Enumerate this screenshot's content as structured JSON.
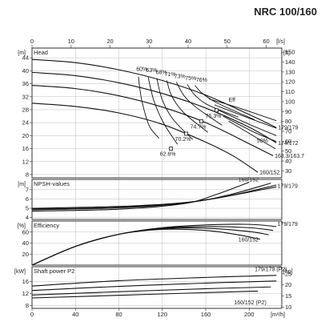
{
  "title": "NRC 100/160",
  "chart_data": {
    "type": "line",
    "x_axis_bottom": {
      "unit": "[m³/h]",
      "ticks": [
        0,
        40,
        80,
        120,
        160,
        200
      ],
      "range": [
        0,
        230
      ]
    },
    "x_axis_top": {
      "unit": "[l/s]",
      "ticks": [
        0,
        10,
        20,
        30,
        40,
        50,
        60
      ],
      "range": [
        0,
        64
      ]
    },
    "head": {
      "title": "Head",
      "unit_left": "[m]",
      "unit_right": "[ft]",
      "yticks": [
        8,
        12,
        16,
        20,
        24,
        28,
        32,
        36,
        40,
        44
      ],
      "yticks_right": [
        30,
        40,
        50,
        60,
        70,
        80,
        90,
        100,
        110,
        120,
        130,
        140,
        150
      ],
      "ylim": [
        7,
        47
      ],
      "series": [
        {
          "name": "179/179",
          "points": [
            [
              0,
              43.5
            ],
            [
              40,
              42.5
            ],
            [
              80,
              40.3
            ],
            [
              120,
              37
            ],
            [
              160,
              32.5
            ],
            [
              200,
              26.5
            ],
            [
              225,
              22.5
            ]
          ]
        },
        {
          "name": "174/172",
          "points": [
            [
              0,
              39.5
            ],
            [
              40,
              38.5
            ],
            [
              80,
              36.3
            ],
            [
              120,
              33
            ],
            [
              160,
              28.5
            ],
            [
              200,
              22.6
            ],
            [
              225,
              17.8
            ]
          ]
        },
        {
          "name": "168.3/163.7",
          "points": [
            [
              0,
              35.5
            ],
            [
              40,
              34.5
            ],
            [
              80,
              32.3
            ],
            [
              120,
              28.8
            ],
            [
              160,
              24
            ],
            [
              200,
              17.5
            ],
            [
              222,
              13.8
            ]
          ]
        },
        {
          "name": "160/152",
          "points": [
            [
              0,
              30
            ],
            [
              40,
              29
            ],
            [
              80,
              27
            ],
            [
              120,
              23.5
            ],
            [
              160,
              18
            ],
            [
              185,
              13.8
            ],
            [
              208,
              8.7
            ]
          ]
        }
      ],
      "efficiency_isolines": [
        {
          "label": "60%",
          "points": [
            [
              98,
              38.2
            ],
            [
              101,
              31
            ],
            [
              108,
              23
            ],
            [
              117,
              19.2
            ]
          ]
        },
        {
          "label": "63%",
          "points": [
            [
              107,
              38
            ],
            [
              112,
              31
            ],
            [
              121,
              24
            ],
            [
              134,
              17.3
            ]
          ]
        },
        {
          "label": "68%",
          "points": [
            [
              115,
              37.5
            ],
            [
              120,
              31
            ],
            [
              130,
              25
            ],
            [
              148,
              18.8
            ]
          ]
        },
        {
          "label": "71%",
          "points": [
            [
              124,
              37
            ],
            [
              129,
              32
            ],
            [
              140,
              27
            ],
            [
              162,
              21
            ]
          ]
        },
        {
          "label": "73%",
          "points": [
            [
              133,
              36.5
            ],
            [
              140,
              32.3
            ],
            [
              152,
              28.5
            ],
            [
              175,
              23.2
            ]
          ]
        },
        {
          "label": "75%",
          "points": [
            [
              143,
              35.8
            ],
            [
              150,
              32.5
            ],
            [
              163,
              29.3
            ],
            [
              190,
              25.7
            ]
          ]
        },
        {
          "label": "76%",
          "points": [
            [
              150,
              35.5
            ],
            [
              157,
              33
            ],
            [
              171,
              30
            ],
            [
              205,
              24.9
            ]
          ]
        },
        {
          "label": "76%",
          "points": [
            [
              163,
              31.3
            ],
            [
              190,
              28.6
            ],
            [
              225,
              24.6
            ]
          ]
        },
        {
          "label": "75%",
          "points": [
            [
              168,
              29.5
            ],
            [
              195,
              26
            ],
            [
              225,
              22.3
            ]
          ]
        },
        {
          "label": "73%",
          "points": [
            [
              172,
              27.8
            ],
            [
              200,
              23.5
            ],
            [
              225,
              20
            ]
          ]
        },
        {
          "label": "71%",
          "points": [
            [
              176,
              26
            ],
            [
              205,
              21
            ],
            [
              225,
              18.2
            ]
          ]
        },
        {
          "label": "68%",
          "points": [
            [
              181,
              24.5
            ],
            [
              210,
              18.7
            ],
            [
              224,
              16
            ]
          ]
        }
      ],
      "markers": [
        {
          "label": "Eff",
          "x": 178,
          "y": 30.5
        },
        {
          "label": "76.3%",
          "x": 170,
          "y": 27.8
        },
        {
          "label": "74.7%",
          "x": 156,
          "y": 24.4
        },
        {
          "label": "70.2%",
          "x": 142,
          "y": 20.6
        },
        {
          "label": "62.6%",
          "x": 128,
          "y": 16
        }
      ],
      "extra_labels": [
        "60%",
        "68%",
        "71%",
        "73%",
        "75%",
        "76%",
        "Eff",
        "76.3%",
        "74.7%",
        "70.2%",
        "62.6%",
        "50%",
        "179/179",
        "174/172",
        "168.3/163.7",
        "160/152"
      ]
    },
    "npsh": {
      "title": "NPSH-values",
      "unit": "[m]",
      "yticks": [
        4,
        5,
        6,
        7
      ],
      "ylim": [
        3.8,
        8.1
      ],
      "series": [
        {
          "name": "179/179",
          "points": [
            [
              0,
              5
            ],
            [
              80,
              5.2
            ],
            [
              140,
              5.6
            ],
            [
              180,
              6.3
            ],
            [
              225,
              7.3
            ]
          ]
        },
        {
          "name": "160/152",
          "points": [
            [
              0,
              4.7
            ],
            [
              80,
              4.9
            ],
            [
              140,
              5.5
            ],
            [
              170,
              6.5
            ],
            [
              200,
              7.8
            ]
          ]
        }
      ],
      "labels": [
        "160/152",
        "179/179"
      ]
    },
    "efficiency": {
      "title": "Efficiency",
      "unit": "[%]",
      "yticks": [
        20,
        40,
        60
      ],
      "ylim": [
        0,
        80
      ],
      "series": [
        {
          "name": "179/179",
          "points": [
            [
              0,
              0
            ],
            [
              40,
              34
            ],
            [
              80,
              56
            ],
            [
              120,
              68
            ],
            [
              160,
              73
            ],
            [
              200,
              74
            ],
            [
              225,
              70
            ]
          ]
        },
        {
          "name": "160/152",
          "points": [
            [
              0,
              0
            ],
            [
              40,
              34
            ],
            [
              80,
              56
            ],
            [
              120,
              65
            ],
            [
              160,
              63
            ],
            [
              190,
              55
            ],
            [
              210,
              47
            ]
          ]
        }
      ],
      "labels": [
        "179/179",
        "160/152"
      ]
    },
    "power": {
      "title": "Shaft power P2",
      "unit_left": "[kW]",
      "unit_right": "[hp]",
      "yticks": [
        8,
        12,
        16
      ],
      "yticks_right": [
        10,
        15,
        20,
        25
      ],
      "ylim": [
        7,
        21
      ],
      "series": [
        {
          "name": "179/179 (P2)",
          "points": [
            [
              0,
              14.5
            ],
            [
              80,
              16.3
            ],
            [
              160,
              17.4
            ],
            [
              225,
              18.1
            ]
          ]
        },
        {
          "name": "",
          "points": [
            [
              0,
              13
            ],
            [
              80,
              14.4
            ],
            [
              160,
              15.5
            ],
            [
              225,
              16.2
            ]
          ]
        },
        {
          "name": "",
          "points": [
            [
              0,
              11.5
            ],
            [
              80,
              12.6
            ],
            [
              160,
              13.6
            ],
            [
              220,
              14.2
            ]
          ]
        },
        {
          "name": "160/152 (P2)",
          "points": [
            [
              0,
              10.5
            ],
            [
              80,
              11.4
            ],
            [
              160,
              12.3
            ],
            [
              208,
              12.8
            ]
          ]
        }
      ],
      "labels": [
        "179/179 (P2)",
        "160/152 (P2)"
      ]
    }
  }
}
